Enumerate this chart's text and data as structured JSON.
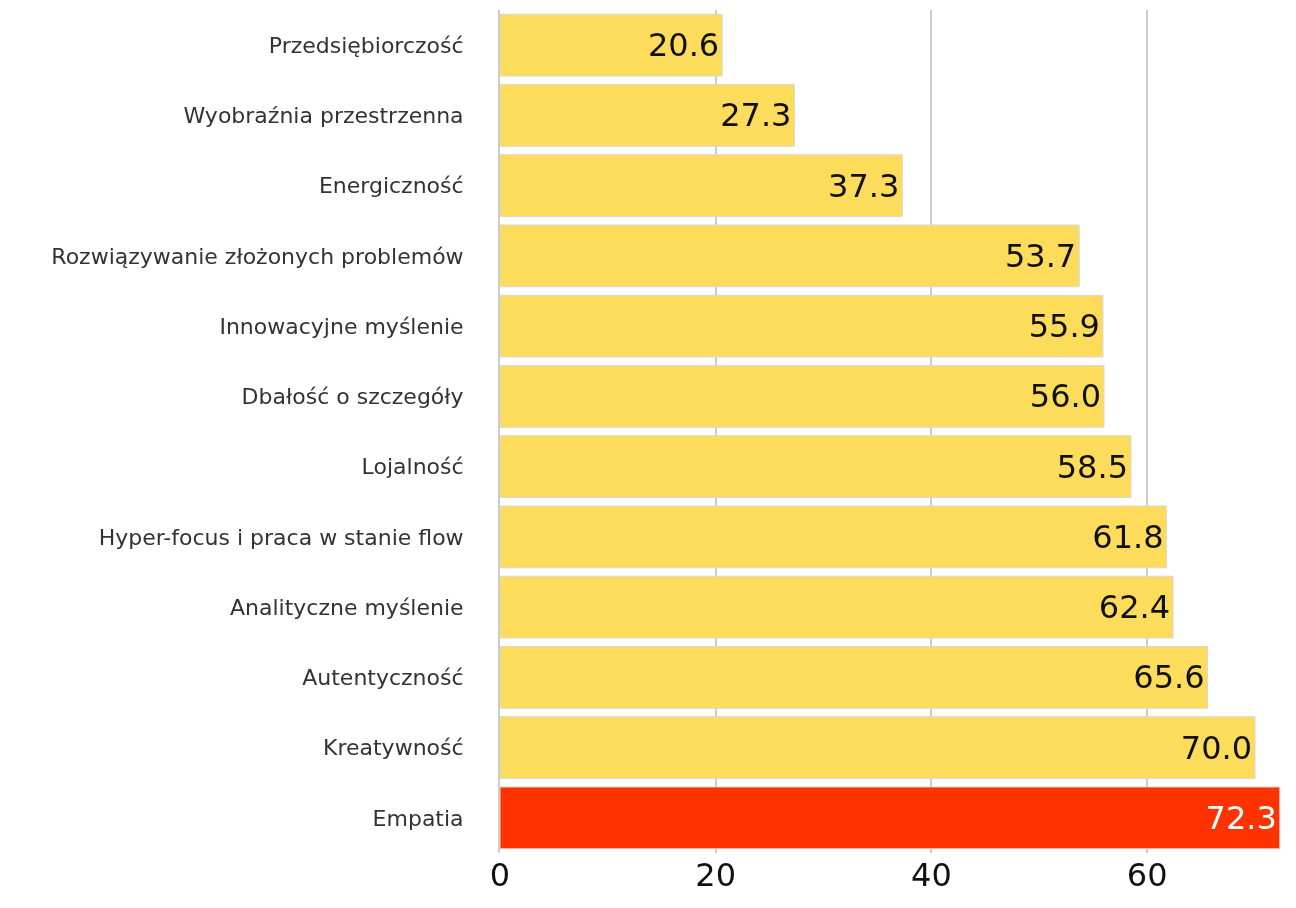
{
  "chart_data": {
    "type": "bar",
    "orientation": "horizontal",
    "categories": [
      "Przedsiębiorczość",
      "Wyobraźnia przestrzenna",
      "Energiczność",
      "Rozwiązywanie złożonych problemów",
      "Innowacyjne myślenie",
      "Dbałość o szczegóły",
      "Lojalność",
      "Hyper-focus i praca w stanie flow",
      "Analityczne myślenie",
      "Autentyczność",
      "Kreatywność",
      "Empatia"
    ],
    "values": [
      20.6,
      27.3,
      37.3,
      53.7,
      55.9,
      56.0,
      58.5,
      61.8,
      62.4,
      65.6,
      70.0,
      72.3
    ],
    "value_labels": [
      "20.6",
      "27.3",
      "37.3",
      "53.7",
      "55.9",
      "56.0",
      "58.5",
      "61.8",
      "62.4",
      "65.6",
      "70.0",
      "72.3"
    ],
    "colors": [
      "#fddc5c",
      "#fddc5c",
      "#fddc5c",
      "#fddc5c",
      "#fddc5c",
      "#fddc5c",
      "#fddc5c",
      "#fddc5c",
      "#fddc5c",
      "#fddc5c",
      "#fddc5c",
      "#ff3300"
    ],
    "xlim": [
      0,
      72.5
    ],
    "xticks": [
      0,
      20,
      40,
      60
    ],
    "grid": "x"
  }
}
